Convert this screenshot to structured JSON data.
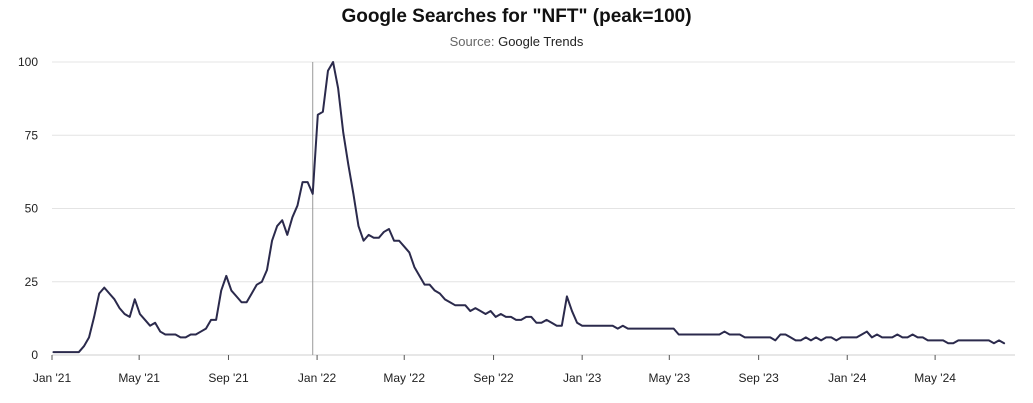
{
  "chart_data": {
    "type": "line",
    "title": "Google Searches for \"NFT\" (peak=100)",
    "subtitle_prefix": "Source:",
    "subtitle_source": "Google Trends",
    "xlabel": "",
    "ylabel": "",
    "ylim": [
      0,
      100
    ],
    "yticks": [
      0,
      25,
      50,
      75,
      100
    ],
    "xticks": [
      {
        "label": "Jan '21",
        "date": "2021-01-01"
      },
      {
        "label": "May '21",
        "date": "2021-05-01"
      },
      {
        "label": "Sep '21",
        "date": "2021-09-01"
      },
      {
        "label": "Jan '22",
        "date": "2022-01-01"
      },
      {
        "label": "May '22",
        "date": "2022-05-01"
      },
      {
        "label": "Sep '22",
        "date": "2022-09-01"
      },
      {
        "label": "Jan '23",
        "date": "2023-01-01"
      },
      {
        "label": "May '23",
        "date": "2023-05-01"
      },
      {
        "label": "Sep '23",
        "date": "2023-09-01"
      },
      {
        "label": "Jan '24",
        "date": "2024-01-01"
      },
      {
        "label": "May '24",
        "date": "2024-05-01"
      }
    ],
    "grid": true,
    "line_color": "#2b2a4c",
    "marker_line_date": "2021-12-26",
    "marker_line_color": "#999999",
    "series": [
      {
        "points": [
          [
            "2021-01-03",
            1
          ],
          [
            "2021-01-10",
            1
          ],
          [
            "2021-01-17",
            1
          ],
          [
            "2021-01-24",
            1
          ],
          [
            "2021-01-31",
            1
          ],
          [
            "2021-02-07",
            1
          ],
          [
            "2021-02-14",
            3
          ],
          [
            "2021-02-21",
            6
          ],
          [
            "2021-02-28",
            13
          ],
          [
            "2021-03-07",
            21
          ],
          [
            "2021-03-14",
            23
          ],
          [
            "2021-03-21",
            21
          ],
          [
            "2021-03-28",
            19
          ],
          [
            "2021-04-04",
            16
          ],
          [
            "2021-04-11",
            14
          ],
          [
            "2021-04-18",
            13
          ],
          [
            "2021-04-25",
            19
          ],
          [
            "2021-05-02",
            14
          ],
          [
            "2021-05-09",
            12
          ],
          [
            "2021-05-16",
            10
          ],
          [
            "2021-05-23",
            11
          ],
          [
            "2021-05-30",
            8
          ],
          [
            "2021-06-06",
            7
          ],
          [
            "2021-06-13",
            7
          ],
          [
            "2021-06-20",
            7
          ],
          [
            "2021-06-27",
            6
          ],
          [
            "2021-07-04",
            6
          ],
          [
            "2021-07-11",
            7
          ],
          [
            "2021-07-18",
            7
          ],
          [
            "2021-07-25",
            8
          ],
          [
            "2021-08-01",
            9
          ],
          [
            "2021-08-08",
            12
          ],
          [
            "2021-08-15",
            12
          ],
          [
            "2021-08-22",
            22
          ],
          [
            "2021-08-29",
            27
          ],
          [
            "2021-09-05",
            22
          ],
          [
            "2021-09-12",
            20
          ],
          [
            "2021-09-19",
            18
          ],
          [
            "2021-09-26",
            18
          ],
          [
            "2021-10-03",
            21
          ],
          [
            "2021-10-10",
            24
          ],
          [
            "2021-10-17",
            25
          ],
          [
            "2021-10-24",
            29
          ],
          [
            "2021-10-31",
            39
          ],
          [
            "2021-11-07",
            44
          ],
          [
            "2021-11-14",
            46
          ],
          [
            "2021-11-21",
            41
          ],
          [
            "2021-11-28",
            47
          ],
          [
            "2021-12-05",
            51
          ],
          [
            "2021-12-12",
            59
          ],
          [
            "2021-12-19",
            59
          ],
          [
            "2021-12-26",
            55
          ],
          [
            "2022-01-02",
            82
          ],
          [
            "2022-01-09",
            83
          ],
          [
            "2022-01-16",
            97
          ],
          [
            "2022-01-23",
            100
          ],
          [
            "2022-01-30",
            91
          ],
          [
            "2022-02-06",
            76
          ],
          [
            "2022-02-13",
            65
          ],
          [
            "2022-02-20",
            55
          ],
          [
            "2022-02-27",
            44
          ],
          [
            "2022-03-06",
            39
          ],
          [
            "2022-03-13",
            41
          ],
          [
            "2022-03-20",
            40
          ],
          [
            "2022-03-27",
            40
          ],
          [
            "2022-04-03",
            42
          ],
          [
            "2022-04-10",
            43
          ],
          [
            "2022-04-17",
            39
          ],
          [
            "2022-04-24",
            39
          ],
          [
            "2022-05-01",
            37
          ],
          [
            "2022-05-08",
            35
          ],
          [
            "2022-05-15",
            30
          ],
          [
            "2022-05-22",
            27
          ],
          [
            "2022-05-29",
            24
          ],
          [
            "2022-06-05",
            24
          ],
          [
            "2022-06-12",
            22
          ],
          [
            "2022-06-19",
            21
          ],
          [
            "2022-06-26",
            19
          ],
          [
            "2022-07-03",
            18
          ],
          [
            "2022-07-10",
            17
          ],
          [
            "2022-07-17",
            17
          ],
          [
            "2022-07-24",
            17
          ],
          [
            "2022-07-31",
            15
          ],
          [
            "2022-08-07",
            16
          ],
          [
            "2022-08-14",
            15
          ],
          [
            "2022-08-21",
            14
          ],
          [
            "2022-08-28",
            15
          ],
          [
            "2022-09-04",
            13
          ],
          [
            "2022-09-11",
            14
          ],
          [
            "2022-09-18",
            13
          ],
          [
            "2022-09-25",
            13
          ],
          [
            "2022-10-02",
            12
          ],
          [
            "2022-10-09",
            12
          ],
          [
            "2022-10-16",
            13
          ],
          [
            "2022-10-23",
            13
          ],
          [
            "2022-10-30",
            11
          ],
          [
            "2022-11-06",
            11
          ],
          [
            "2022-11-13",
            12
          ],
          [
            "2022-11-20",
            11
          ],
          [
            "2022-11-27",
            10
          ],
          [
            "2022-12-04",
            10
          ],
          [
            "2022-12-11",
            20
          ],
          [
            "2022-12-18",
            15
          ],
          [
            "2022-12-25",
            11
          ],
          [
            "2023-01-01",
            10
          ],
          [
            "2023-01-08",
            10
          ],
          [
            "2023-01-15",
            10
          ],
          [
            "2023-01-22",
            10
          ],
          [
            "2023-01-29",
            10
          ],
          [
            "2023-02-05",
            10
          ],
          [
            "2023-02-12",
            10
          ],
          [
            "2023-02-19",
            9
          ],
          [
            "2023-02-26",
            10
          ],
          [
            "2023-03-05",
            9
          ],
          [
            "2023-03-12",
            9
          ],
          [
            "2023-03-19",
            9
          ],
          [
            "2023-03-26",
            9
          ],
          [
            "2023-04-02",
            9
          ],
          [
            "2023-04-09",
            9
          ],
          [
            "2023-04-16",
            9
          ],
          [
            "2023-04-23",
            9
          ],
          [
            "2023-04-30",
            9
          ],
          [
            "2023-05-07",
            9
          ],
          [
            "2023-05-14",
            7
          ],
          [
            "2023-05-21",
            7
          ],
          [
            "2023-05-28",
            7
          ],
          [
            "2023-06-04",
            7
          ],
          [
            "2023-06-11",
            7
          ],
          [
            "2023-06-18",
            7
          ],
          [
            "2023-06-25",
            7
          ],
          [
            "2023-07-02",
            7
          ],
          [
            "2023-07-09",
            7
          ],
          [
            "2023-07-16",
            8
          ],
          [
            "2023-07-23",
            7
          ],
          [
            "2023-07-30",
            7
          ],
          [
            "2023-08-06",
            7
          ],
          [
            "2023-08-13",
            6
          ],
          [
            "2023-08-20",
            6
          ],
          [
            "2023-08-27",
            6
          ],
          [
            "2023-09-03",
            6
          ],
          [
            "2023-09-10",
            6
          ],
          [
            "2023-09-17",
            6
          ],
          [
            "2023-09-24",
            5
          ],
          [
            "2023-10-01",
            7
          ],
          [
            "2023-10-08",
            7
          ],
          [
            "2023-10-15",
            6
          ],
          [
            "2023-10-22",
            5
          ],
          [
            "2023-10-29",
            5
          ],
          [
            "2023-11-05",
            6
          ],
          [
            "2023-11-12",
            5
          ],
          [
            "2023-11-19",
            6
          ],
          [
            "2023-11-26",
            5
          ],
          [
            "2023-12-03",
            6
          ],
          [
            "2023-12-10",
            6
          ],
          [
            "2023-12-17",
            5
          ],
          [
            "2023-12-24",
            6
          ],
          [
            "2023-12-31",
            6
          ],
          [
            "2024-01-07",
            6
          ],
          [
            "2024-01-14",
            6
          ],
          [
            "2024-01-21",
            7
          ],
          [
            "2024-01-28",
            8
          ],
          [
            "2024-02-04",
            6
          ],
          [
            "2024-02-11",
            7
          ],
          [
            "2024-02-18",
            6
          ],
          [
            "2024-02-25",
            6
          ],
          [
            "2024-03-03",
            6
          ],
          [
            "2024-03-10",
            7
          ],
          [
            "2024-03-17",
            6
          ],
          [
            "2024-03-24",
            6
          ],
          [
            "2024-03-31",
            7
          ],
          [
            "2024-04-07",
            6
          ],
          [
            "2024-04-14",
            6
          ],
          [
            "2024-04-21",
            5
          ],
          [
            "2024-04-28",
            5
          ],
          [
            "2024-05-05",
            5
          ],
          [
            "2024-05-12",
            5
          ],
          [
            "2024-05-19",
            4
          ],
          [
            "2024-05-26",
            4
          ],
          [
            "2024-06-02",
            5
          ],
          [
            "2024-06-09",
            5
          ],
          [
            "2024-06-16",
            5
          ],
          [
            "2024-06-23",
            5
          ],
          [
            "2024-06-30",
            5
          ],
          [
            "2024-07-07",
            5
          ],
          [
            "2024-07-14",
            5
          ],
          [
            "2024-07-21",
            4
          ],
          [
            "2024-07-28",
            5
          ],
          [
            "2024-08-04",
            4
          ]
        ]
      }
    ]
  }
}
